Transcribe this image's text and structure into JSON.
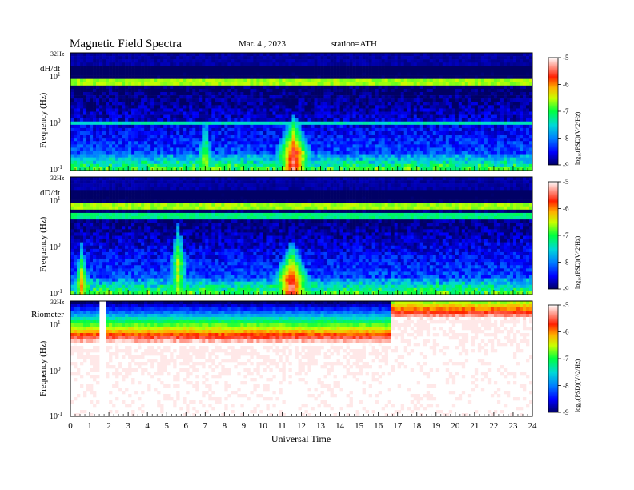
{
  "header": {
    "title": "Magnetic  Field  Spectra",
    "date": "Mar. 4  , 2023",
    "station": "station=ATH"
  },
  "chart_data": {
    "type": "heatmap",
    "xlabel": "Universal Time",
    "x_ticks": [
      "0",
      "1",
      "2",
      "3",
      "4",
      "5",
      "6",
      "7",
      "8",
      "9",
      "10",
      "11",
      "12",
      "13",
      "14",
      "15",
      "16",
      "17",
      "18",
      "19",
      "20",
      "21",
      "22",
      "23",
      "24"
    ],
    "xlim": [
      0,
      24
    ],
    "panels": [
      {
        "name": "dH/dt",
        "ylabel": "Frequency  (Hz)",
        "top_label": "32Hz",
        "y_ticks": [
          {
            "base": "10",
            "exp": "1",
            "value": 10
          },
          {
            "base": "10",
            "exp": "0",
            "value": 1
          },
          {
            "base": "10",
            "exp": "-1",
            "value": 0.1
          }
        ],
        "yscale": "log",
        "ylim": [
          0.1,
          32
        ],
        "colorbar": {
          "label": "log₁₀(PSD)(V^2/Hz)",
          "ticks": [
            "-5",
            "-6",
            "-7",
            "-8",
            "-9"
          ],
          "range": [
            -9,
            -5
          ]
        },
        "features": [
          {
            "type": "band",
            "freq": 7.8,
            "level": -6.6
          },
          {
            "type": "band",
            "freq": 1.0,
            "level": -7.4
          },
          {
            "type": "burst",
            "t_start": 10.6,
            "t_end": 12.6,
            "peak_t": 11.6,
            "peak_freq": 0.25,
            "level": -5.4
          },
          {
            "type": "burst",
            "t_start": 6.6,
            "t_end": 7.4,
            "peak_t": 7.0,
            "peak_freq": 0.2,
            "level": -6.4
          }
        ]
      },
      {
        "name": "dD/dt",
        "ylabel": "Frequency  (Hz)",
        "top_label": "32Hz",
        "y_ticks": [
          {
            "base": "10",
            "exp": "1",
            "value": 10
          },
          {
            "base": "10",
            "exp": "0",
            "value": 1
          },
          {
            "base": "10",
            "exp": "-1",
            "value": 0.1
          }
        ],
        "yscale": "log",
        "ylim": [
          0.1,
          32
        ],
        "colorbar": {
          "label": "log₁₀(PSD)(V^2/Hz)",
          "ticks": [
            "-5",
            "-6",
            "-7",
            "-8",
            "-9"
          ],
          "range": [
            -9,
            -5
          ]
        },
        "features": [
          {
            "type": "band",
            "freq": 7.8,
            "level": -6.6
          },
          {
            "type": "band",
            "freq": 4.5,
            "level": -7.2
          },
          {
            "type": "burst",
            "t_start": 10.5,
            "t_end": 12.5,
            "peak_t": 11.5,
            "peak_freq": 0.22,
            "level": -5.3
          },
          {
            "type": "burst",
            "t_start": 5.2,
            "t_end": 6.0,
            "peak_t": 5.6,
            "peak_freq": 0.5,
            "level": -6.5
          },
          {
            "type": "burst",
            "t_start": 0.2,
            "t_end": 1.0,
            "peak_t": 0.6,
            "peak_freq": 0.2,
            "level": -6.0
          }
        ]
      },
      {
        "name": "Riometer",
        "ylabel": "Frequency  (Hz)",
        "top_label": "32Hz",
        "y_ticks": [
          {
            "base": "10",
            "exp": "1",
            "value": 10
          },
          {
            "base": "10",
            "exp": "0",
            "value": 1
          },
          {
            "base": "10",
            "exp": "-1",
            "value": 0.1
          }
        ],
        "yscale": "log",
        "ylim": [
          0.1,
          32
        ],
        "colorbar": {
          "label": "log₁₀(PSD)(V^2/Hz)",
          "ticks": [
            "-5",
            "-6",
            "-7",
            "-8",
            "-9"
          ],
          "range": [
            -9,
            -5
          ]
        },
        "features": [
          {
            "type": "high_power_region",
            "t_start": 0,
            "t_end": 16.7,
            "cutoff_freq": 5.0,
            "level": -5.5
          },
          {
            "type": "gap",
            "t_start": 5.6,
            "t_end": 5.75
          },
          {
            "type": "gap",
            "t_start": 1.5,
            "t_end": 1.9
          },
          {
            "type": "high_power_region",
            "t_start": 16.7,
            "t_end": 24,
            "cutoff_freq": 18,
            "level": -5.6
          }
        ]
      }
    ]
  }
}
